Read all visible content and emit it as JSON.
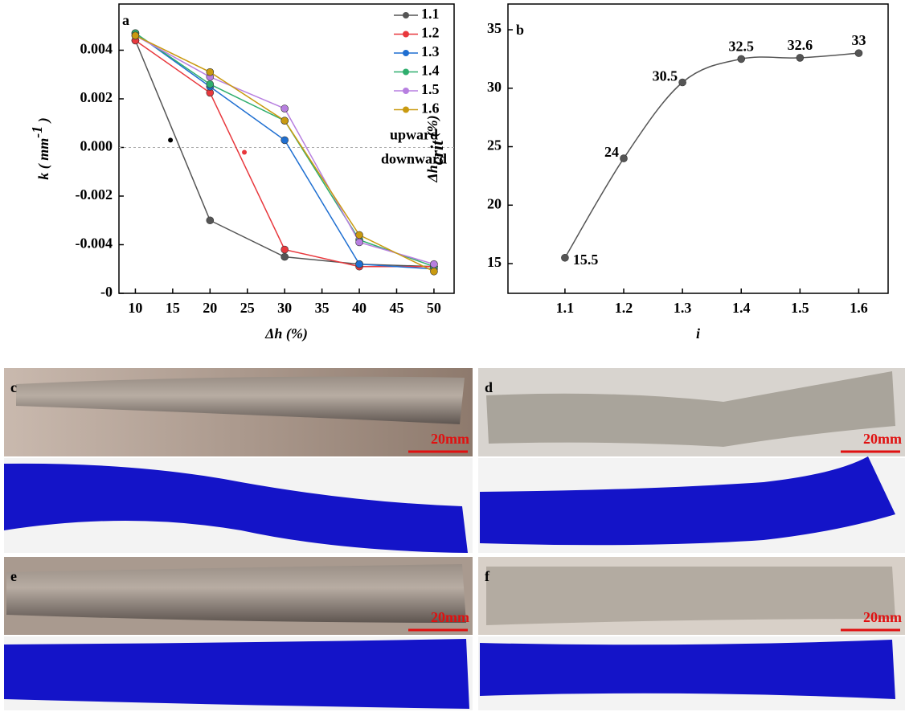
{
  "chart_data": [
    {
      "type": "line",
      "panel": "a",
      "xlabel": "Δh (%)",
      "ylabel": "k ( mm",
      "ylabel_sup": "-1",
      "ylabel_end": " )",
      "xlim": [
        7.8,
        52.7
      ],
      "ylim": [
        -0.006,
        0.0059
      ],
      "xticks": [
        10,
        15,
        20,
        25,
        30,
        35,
        40,
        45,
        50
      ],
      "yticks": [
        {
          "value": -0.006,
          "label": "-0"
        },
        -0.004,
        -0.002,
        {
          "value": 0,
          "label": "0.000"
        },
        0.002,
        0.004
      ],
      "x": [
        10,
        20,
        30,
        40,
        50
      ],
      "series": [
        {
          "name": "1.1",
          "color": "#555555",
          "values": [
            0.0044,
            -0.003,
            -0.0045,
            -0.0048,
            -0.0049
          ]
        },
        {
          "name": "1.2",
          "color": "#e8383d",
          "values": [
            0.0044,
            0.00225,
            -0.0042,
            -0.0049,
            -0.0049
          ]
        },
        {
          "name": "1.3",
          "color": "#1f6fd1",
          "values": [
            0.0047,
            0.0025,
            0.0003,
            -0.0048,
            -0.005
          ]
        },
        {
          "name": "1.4",
          "color": "#2fae6e",
          "values": [
            0.0047,
            0.0026,
            0.0011,
            -0.0038,
            -0.0049
          ]
        },
        {
          "name": "1.5",
          "color": "#b77fe0",
          "values": [
            0.0046,
            0.0029,
            0.0016,
            -0.0039,
            -0.0048
          ]
        },
        {
          "name": "1.6",
          "color": "#c99a10",
          "values": [
            0.0046,
            0.0031,
            0.0011,
            -0.0036,
            -0.0051
          ]
        }
      ],
      "points": [
        {
          "x": 14.7,
          "y": 0.0003,
          "color": "#000000"
        },
        {
          "x": 24.6,
          "y": -0.0002,
          "color": "#e8383d"
        }
      ],
      "reference_line": 0,
      "annotations": [
        "upward",
        "downward"
      ],
      "legend": "upper right"
    },
    {
      "type": "line",
      "panel": "b",
      "smooth": true,
      "xlabel": "i",
      "ylabel": "Δh",
      "ylabel_sub": "crit",
      "ylabel_end": " (%)",
      "xlim": [
        1.003,
        1.65
      ],
      "ylim": [
        12.46,
        37.2
      ],
      "xticks": [
        1.1,
        1.2,
        1.3,
        1.4,
        1.5,
        1.6
      ],
      "yticks": [
        15,
        20,
        25,
        30,
        35
      ],
      "x": [
        1.1,
        1.2,
        1.3,
        1.4,
        1.5,
        1.6
      ],
      "series": [
        {
          "color": "#555555",
          "values": [
            15.5,
            24,
            30.5,
            32.5,
            32.6,
            33
          ]
        }
      ]
    }
  ],
  "panels": [
    {
      "label": "c",
      "scale": "20mm"
    },
    {
      "label": "d",
      "scale": "20mm"
    },
    {
      "label": "e",
      "scale": "20mm"
    },
    {
      "label": "f",
      "scale": "20mm"
    }
  ]
}
